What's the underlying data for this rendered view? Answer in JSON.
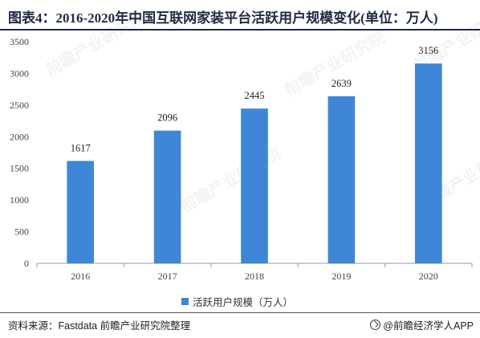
{
  "page": {
    "title": "图表4：2016-2020年中国互联网家装平台活跃用户规模变化(单位：万人)",
    "source": "资料来源：Fastdata 前瞻产业研究院整理",
    "brand": "@前瞻经济学人APP",
    "watermark": "前瞻产业研究院"
  },
  "colors": {
    "bar": "#3f86d6",
    "axis": "#999999",
    "text": "#333333"
  },
  "chart_data": {
    "type": "bar",
    "categories": [
      "2016",
      "2017",
      "2018",
      "2019",
      "2020"
    ],
    "series": [
      {
        "name": "活跃用户规模（万人）",
        "values": [
          1617,
          2096,
          2445,
          2639,
          3156
        ]
      }
    ],
    "ylim": [
      0,
      3500
    ],
    "yticks": [
      0,
      500,
      1000,
      1500,
      2000,
      2500,
      3000,
      3500
    ],
    "grid": false,
    "legend_position": "bottom-center"
  }
}
